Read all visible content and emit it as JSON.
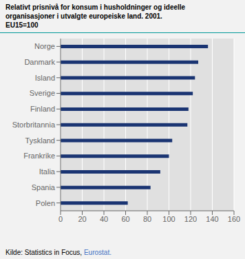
{
  "chart_data": {
    "type": "bar",
    "orientation": "horizontal",
    "title": "Relativt prisnivå for konsum i husholdninger og ideelle\norganisasjoner i utvalgte europeiske land. 2001.\nEU15=100",
    "categories": [
      "Norge",
      "Danmark",
      "Island",
      "Sverige",
      "Finland",
      "Storbritannia",
      "Tyskland",
      "Frankrike",
      "Italia",
      "Spania",
      "Polen"
    ],
    "values": [
      136,
      127,
      124,
      122,
      118,
      117,
      103,
      100,
      92,
      83,
      62
    ],
    "color": "#1a3472",
    "xlim": [
      0,
      160
    ],
    "xticks": [
      0,
      20,
      40,
      60,
      80,
      100,
      120,
      140,
      160
    ],
    "grid": true,
    "annotations": [
      {
        "text": "Kilde: Statistics in Focus, ",
        "color": "#000000"
      },
      {
        "text": "Eurostat.",
        "color": "#4472c4"
      }
    ]
  }
}
